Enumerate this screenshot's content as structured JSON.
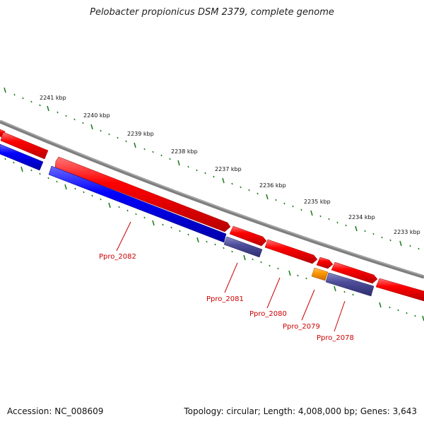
{
  "title": "Pelobacter propionicus DSM 2379, complete genome",
  "footer": {
    "accession": "Accession: NC_008609",
    "summary": "Topology: circular; Length: 4,008,000 bp; Genes: 3,643"
  },
  "scale_labels": [
    "2241 kbp",
    "2240 kbp",
    "2239 kbp",
    "2238 kbp",
    "2237 kbp",
    "2236 kbp",
    "2235 kbp",
    "2234 kbp",
    "2233 kbp"
  ],
  "gene_labels": [
    "Ppro_2082",
    "Ppro_2081",
    "Ppro_2080",
    "Ppro_2079",
    "Ppro_2078"
  ],
  "colors": {
    "forward_gene": "#ff0000",
    "reverse_gene": "#0000ff",
    "reverse_gene_dim": "#4d4d9a",
    "rna_gene": "#ff9900",
    "backbone": "#808080",
    "ticks": "#1a7a1a",
    "label": "#cc0000"
  }
}
